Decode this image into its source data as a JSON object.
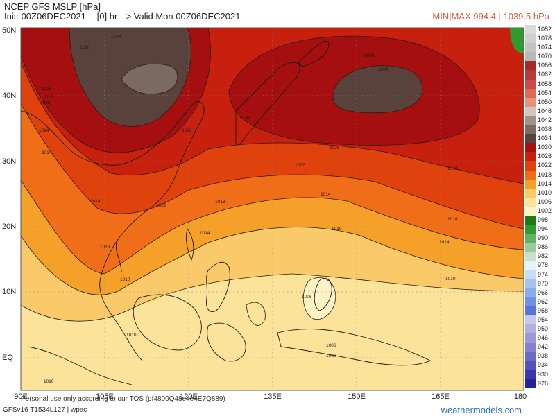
{
  "header": {
    "title": "NCEP GFS MSLP [hPa]",
    "init": "Init: 00Z06DEC2021 -- [0] hr --> Valid Mon 00Z06DEC2021",
    "minmax": "MIN|MAX 994.4 | 1039.5 hPa"
  },
  "axes": {
    "lat_labels": [
      "50N",
      "40N",
      "30N",
      "20N",
      "10N",
      "EQ"
    ],
    "lon_labels": [
      "90E",
      "105E",
      "120E",
      "135E",
      "150E",
      "165E",
      "180"
    ]
  },
  "footer": {
    "tos": "Personal use only according to our TOS (pf4800Q48e4e4E7Q889)",
    "model": "GFSv16 T1534L127 | wpac",
    "site": "weathermodels.com"
  },
  "contour_labels": [
    "1022",
    "1014",
    "1026",
    "1030",
    "1034",
    "1018",
    "1022",
    "1018",
    "1014",
    "1026",
    "1030",
    "1034",
    "1030",
    "1026",
    "1022",
    "1014",
    "1018",
    "1014",
    "1010",
    "1018",
    "1014",
    "1010",
    "1010",
    "1006",
    "1006",
    "1006",
    "1010",
    "1010",
    "1018",
    "1014"
  ],
  "legend": [
    {
      "value": "1082",
      "color": "#d9d9d9"
    },
    {
      "value": "1078",
      "color": "#cfcfcf"
    },
    {
      "value": "1074",
      "color": "#c4c4c4"
    },
    {
      "value": "1070",
      "color": "#b8b8b8"
    },
    {
      "value": "1066",
      "color": "#a02c2c"
    },
    {
      "value": "1062",
      "color": "#b53a3a"
    },
    {
      "value": "1058",
      "color": "#c94b4b"
    },
    {
      "value": "1054",
      "color": "#db6a5a"
    },
    {
      "value": "1050",
      "color": "#e8917a"
    },
    {
      "value": "1046",
      "color": "#d0c8c0"
    },
    {
      "value": "1042",
      "color": "#a09288"
    },
    {
      "value": "1038",
      "color": "#7a6a62"
    },
    {
      "value": "1034",
      "color": "#5a423c"
    },
    {
      "value": "1030",
      "color": "#a50f0f"
    },
    {
      "value": "1026",
      "color": "#c8200e"
    },
    {
      "value": "1022",
      "color": "#e0420e"
    },
    {
      "value": "1018",
      "color": "#f06e18"
    },
    {
      "value": "1014",
      "color": "#f5a028"
    },
    {
      "value": "1010",
      "color": "#f9c96a"
    },
    {
      "value": "1006",
      "color": "#fbe39a"
    },
    {
      "value": "1002",
      "color": "#fdf3c4"
    },
    {
      "value": "998",
      "color": "#1a7a1a"
    },
    {
      "value": "994",
      "color": "#2f9a2f"
    },
    {
      "value": "990",
      "color": "#62b062"
    },
    {
      "value": "986",
      "color": "#9cc89c"
    },
    {
      "value": "982",
      "color": "#c8e0c8"
    },
    {
      "value": "978",
      "color": "#e6f2fb"
    },
    {
      "value": "974",
      "color": "#c8dcf2"
    },
    {
      "value": "970",
      "color": "#a8c4ec"
    },
    {
      "value": "966",
      "color": "#8aacea"
    },
    {
      "value": "962",
      "color": "#7090e6"
    },
    {
      "value": "958",
      "color": "#5872de"
    },
    {
      "value": "954",
      "color": "#c8c8e8"
    },
    {
      "value": "950",
      "color": "#b0b0e0"
    },
    {
      "value": "946",
      "color": "#9a9ad8"
    },
    {
      "value": "942",
      "color": "#8282d0"
    },
    {
      "value": "938",
      "color": "#6a6ac6"
    },
    {
      "value": "934",
      "color": "#5252ba"
    },
    {
      "value": "930",
      "color": "#3a3aaa"
    },
    {
      "value": "926",
      "color": "#24249a"
    }
  ]
}
